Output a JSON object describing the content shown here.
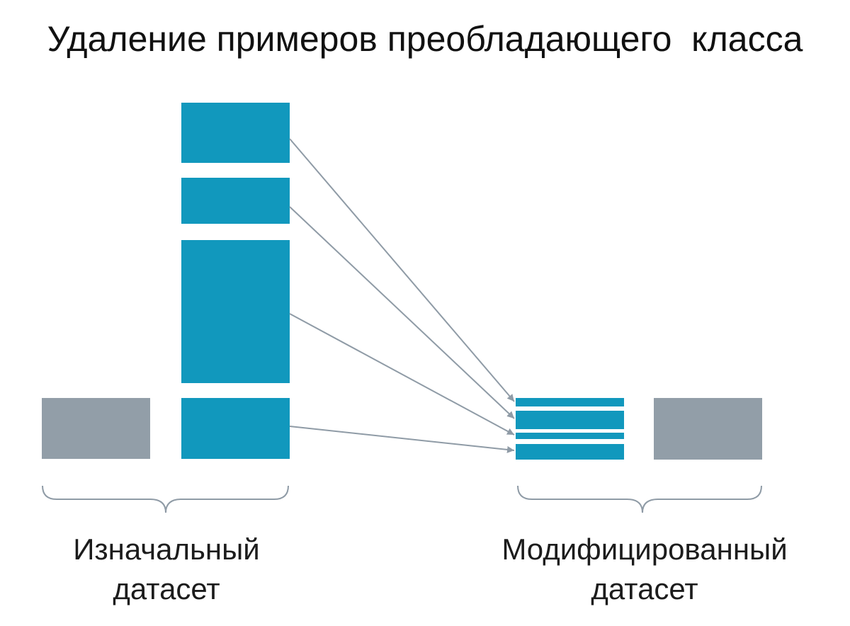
{
  "title": "Удаление примеров преобладающего  класса",
  "original": {
    "label_line1": "Изначальный",
    "label_line2": "датасет"
  },
  "modified": {
    "label_line1": "Модифицированный",
    "label_line2": "датасет"
  },
  "colors": {
    "majority": "#1198bd",
    "minority": "#929ea8",
    "arrow": "#8f9ba6",
    "brace": "#8f9ba6"
  }
}
